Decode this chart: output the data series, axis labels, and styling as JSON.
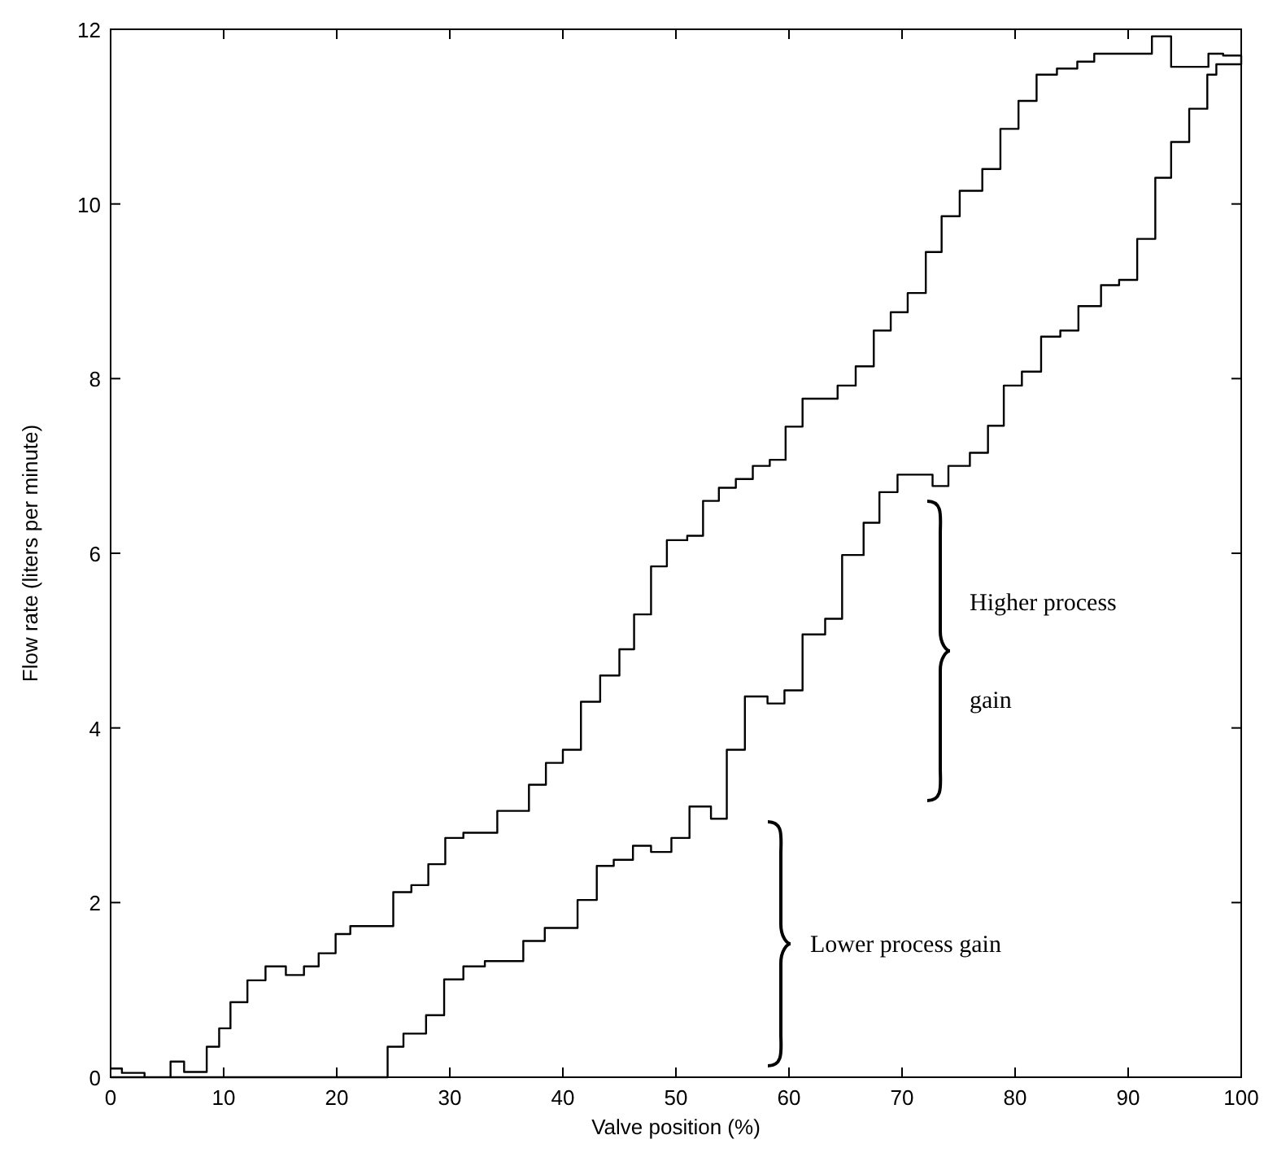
{
  "chart_data": {
    "type": "step",
    "xlabel": "Valve position (%)",
    "ylabel": "Flow rate (liters per minute)",
    "xlim": [
      0,
      100
    ],
    "ylim": [
      0,
      12
    ],
    "xticks": [
      0,
      10,
      20,
      30,
      40,
      50,
      60,
      70,
      80,
      90,
      100
    ],
    "yticks": [
      0,
      2,
      4,
      6,
      8,
      10,
      12
    ],
    "grid": false,
    "series": [
      {
        "color": "#000000",
        "x": [
          0,
          1,
          3,
          5.3,
          6.5,
          8.5,
          9.6,
          10.6,
          12.1,
          13.7,
          15.5,
          17.1,
          18.4,
          19.9,
          21.2,
          25,
          26.6,
          28.1,
          29.6,
          31.2,
          34.2,
          37,
          38.5,
          40,
          41.6,
          43.3,
          45,
          46.3,
          47.8,
          49.2,
          51,
          52.4,
          53.8,
          55.3,
          56.8,
          58.3,
          59.7,
          61.2,
          64.3,
          65.9,
          67.5,
          69,
          70.5,
          72.1,
          73.5,
          75.1,
          77.1,
          78.7,
          80.3,
          81.9,
          83.7,
          85.5,
          87,
          88.6,
          92.1,
          93.8,
          97.1,
          98.4,
          100,
          97.8,
          97,
          95.4,
          93.8,
          92.4,
          90.8,
          89.2,
          87.6,
          85.6,
          84,
          82.3,
          80.6,
          79,
          77.6,
          76,
          74.1,
          72.7,
          69.6,
          68,
          66.6,
          64.7,
          63.2,
          61.2,
          59.6,
          58.1,
          56.1,
          54.5,
          53.1,
          51.2,
          49.6,
          47.8,
          46.2,
          44.5,
          43,
          41.3,
          38.4,
          36.5,
          33.1,
          31.2,
          29.5,
          27.9,
          25.9,
          24.5,
          0
        ],
        "values": [
          0.1,
          0.05,
          0,
          0.18,
          0.06,
          0.35,
          0.56,
          0.86,
          1.11,
          1.27,
          1.17,
          1.27,
          1.42,
          1.64,
          1.73,
          2.12,
          2.2,
          2.44,
          2.74,
          2.8,
          3.05,
          3.35,
          3.6,
          3.75,
          4.3,
          4.6,
          4.9,
          5.3,
          5.85,
          6.15,
          6.2,
          6.6,
          6.75,
          6.85,
          7,
          7.07,
          7.45,
          7.77,
          7.92,
          8.14,
          8.55,
          8.76,
          8.98,
          9.45,
          9.86,
          10.15,
          10.4,
          10.86,
          11.18,
          11.48,
          11.55,
          11.63,
          11.72,
          11.72,
          11.92,
          11.57,
          11.72,
          11.7,
          11.6,
          11.48,
          11.09,
          10.71,
          10.3,
          9.6,
          9.13,
          9.07,
          8.83,
          8.55,
          8.48,
          8.08,
          7.92,
          7.46,
          7.15,
          7,
          6.77,
          6.9,
          6.7,
          6.35,
          5.98,
          5.25,
          5.07,
          4.43,
          4.28,
          4.36,
          3.75,
          2.96,
          3.1,
          2.74,
          2.58,
          2.65,
          2.49,
          2.42,
          2.03,
          1.71,
          1.56,
          1.33,
          1.27,
          1.12,
          0.71,
          0.5,
          0.35,
          0,
          0
        ]
      }
    ],
    "annotations": [
      "Higher process gain",
      "Lower process gain"
    ]
  }
}
